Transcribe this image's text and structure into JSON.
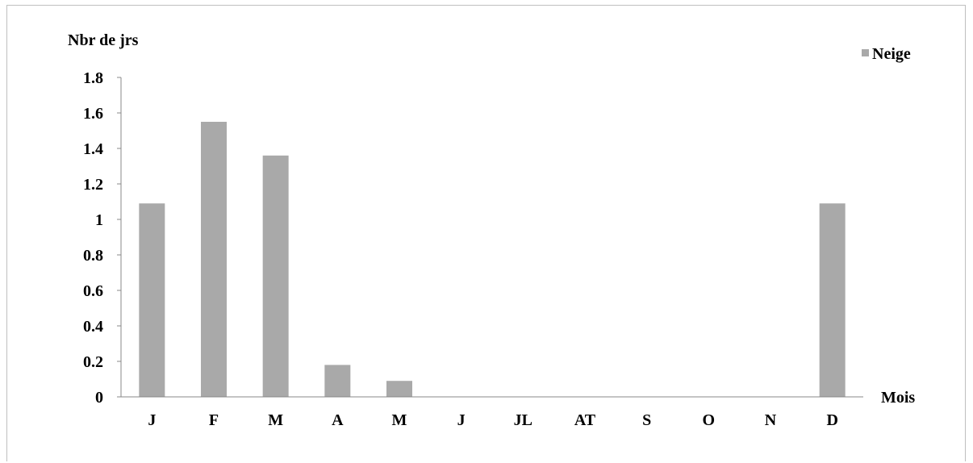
{
  "chart_data": {
    "type": "bar",
    "ylabel": "Nbr de jrs",
    "xlabel": "Mois",
    "categories": [
      "J",
      "F",
      "M",
      "A",
      "M",
      "J",
      "JL",
      "AT",
      "S",
      "O",
      "N",
      "D"
    ],
    "series": [
      {
        "name": "Neige",
        "values": [
          1.09,
          1.55,
          1.36,
          0.18,
          0.09,
          0,
          0,
          0,
          0,
          0,
          0,
          1.09
        ]
      }
    ],
    "ylim": [
      0,
      1.8
    ],
    "yticks": [
      "0",
      "0.2",
      "0.4",
      "0.6",
      "0.8",
      "1",
      "1.2",
      "1.4",
      "1.6",
      "1.8"
    ],
    "grid": false,
    "legend_position": "top-right",
    "bar_color": "#a9a9a9"
  }
}
